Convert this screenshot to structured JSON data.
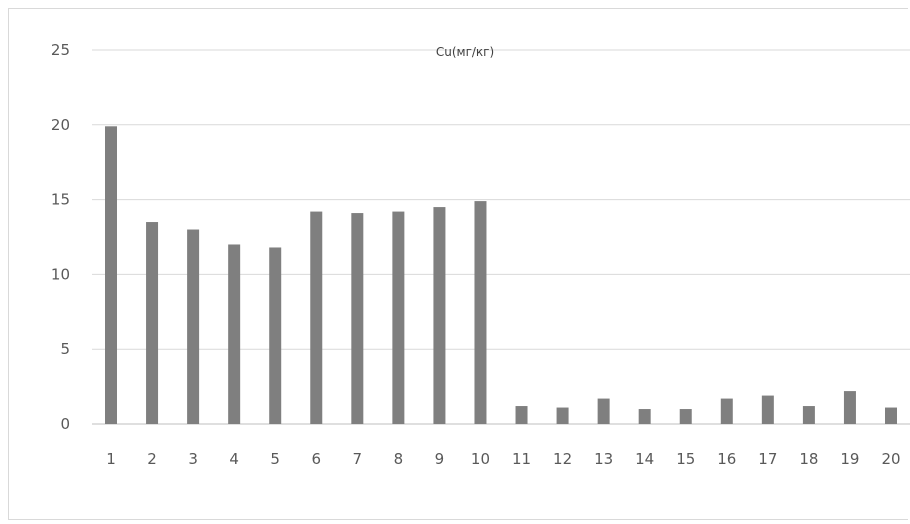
{
  "chart_data": {
    "type": "bar",
    "title": "Cu(мг/кг)",
    "xlabel": "",
    "ylabel": "",
    "categories": [
      "1",
      "2",
      "3",
      "4",
      "5",
      "6",
      "7",
      "8",
      "9",
      "10",
      "11",
      "12",
      "13",
      "14",
      "15",
      "16",
      "17",
      "18",
      "19",
      "20"
    ],
    "values": [
      19.9,
      13.5,
      13.0,
      12.0,
      11.8,
      14.2,
      14.1,
      14.2,
      14.5,
      14.9,
      1.2,
      1.1,
      1.7,
      1.0,
      1.0,
      1.7,
      1.9,
      1.2,
      2.2,
      1.1
    ],
    "ylim": [
      0,
      25
    ],
    "yticks": [
      0,
      5,
      10,
      15,
      20,
      25
    ],
    "grid": true,
    "legend": "none",
    "colors": {
      "bar": "#7f7f7f",
      "grid": "#d9d9d9",
      "axis": "#bfbfbf",
      "text": "#595959"
    }
  }
}
